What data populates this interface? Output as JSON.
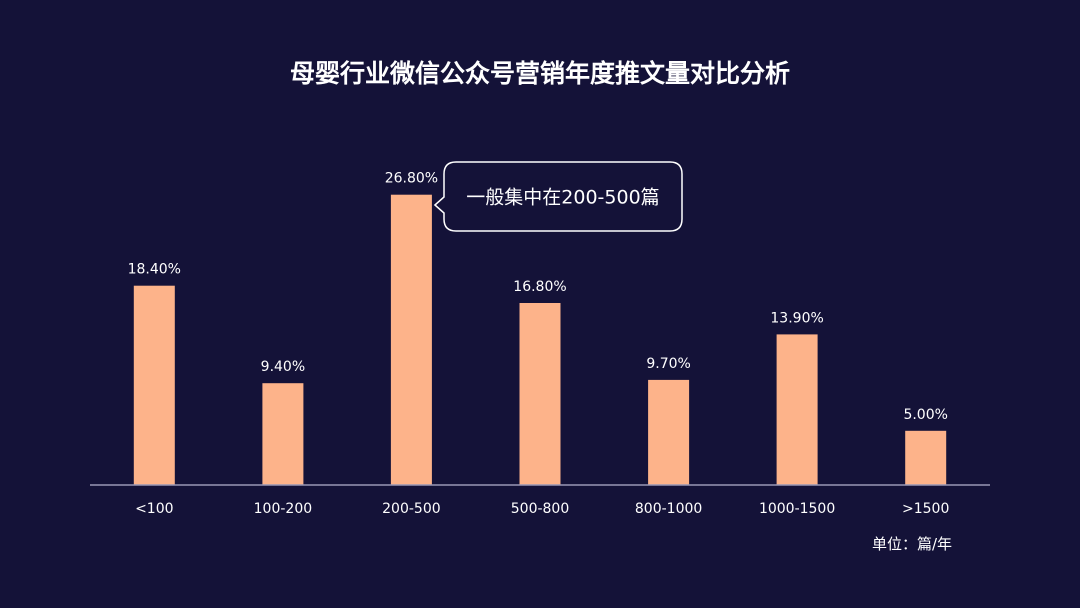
{
  "chart_data": {
    "type": "bar",
    "title": "母婴行业微信公众号营销年度推文量对比分析",
    "categories": [
      "<100",
      "100-200",
      "200-500",
      "500-800",
      "800-1000",
      "1000-1500",
      ">1500"
    ],
    "values": [
      18.4,
      9.4,
      26.8,
      16.8,
      9.7,
      13.9,
      5.0
    ],
    "value_labels": [
      "18.40%",
      "9.40%",
      "26.80%",
      "16.80%",
      "9.70%",
      "13.90%",
      "5.00%"
    ],
    "unit_label": "单位：篇/年",
    "annotation": {
      "text": "一般集中在200-500篇",
      "target_category": "200-500"
    },
    "ylim": [
      0,
      28.8
    ],
    "grid": false,
    "colors": {
      "background": "#141238",
      "bar": "#FDB38A",
      "axis": "#9A98B5",
      "text": "#FFFFFF",
      "callout_border": "#FFFFFF"
    }
  }
}
